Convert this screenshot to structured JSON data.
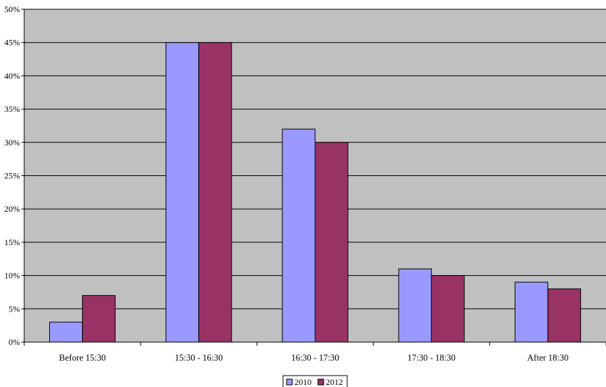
{
  "chart_data": {
    "type": "bar",
    "categories": [
      "Before 15:30",
      "15:30 - 16:30",
      "16:30 - 17:30",
      "17:30 - 18:30",
      "After 18:30"
    ],
    "series": [
      {
        "name": "2010",
        "values": [
          3,
          45,
          32,
          11,
          9
        ],
        "color": "#9999FF"
      },
      {
        "name": "2012",
        "values": [
          7,
          45,
          30,
          10,
          8
        ],
        "color": "#993366"
      }
    ],
    "ylim": [
      0,
      50
    ],
    "yticks": [
      0,
      5,
      10,
      15,
      20,
      25,
      30,
      35,
      40,
      45,
      50
    ],
    "ytick_labels": [
      "0%",
      "5%",
      "10%",
      "15%",
      "20%",
      "25%",
      "30%",
      "35%",
      "40%",
      "45%",
      "50%"
    ],
    "grid": true,
    "plot_background": "#C0C0C0",
    "legend_position": "bottom-center"
  }
}
